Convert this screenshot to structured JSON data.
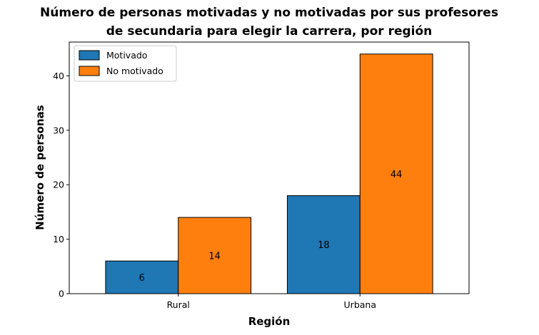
{
  "chart_data": {
    "type": "bar",
    "title_lines": [
      "Número de personas motivadas y no motivadas por sus profesores",
      "de secundaria para elegir la carrera, por región"
    ],
    "xlabel": "Región",
    "ylabel": "Número de personas",
    "categories": [
      "Rural",
      "Urbana"
    ],
    "series": [
      {
        "name": "Motivado",
        "values": [
          6,
          18
        ],
        "color": "#1f77b4"
      },
      {
        "name": "No motivado",
        "values": [
          14,
          44
        ],
        "color": "#ff7f0e"
      }
    ],
    "ylim": [
      0,
      46.2
    ],
    "yticks": [
      0,
      10,
      20,
      30,
      40
    ],
    "legend_position": "top-left",
    "grid": false
  }
}
